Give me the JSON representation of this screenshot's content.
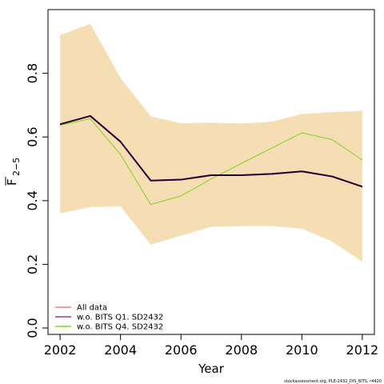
{
  "chart_data": {
    "type": "line",
    "title": "",
    "xlabel": "Year",
    "ylabel": "F",
    "ylabel_sub": "2−5",
    "x": [
      2002,
      2003,
      2004,
      2005,
      2006,
      2007,
      2008,
      2009,
      2010,
      2011,
      2012
    ],
    "xlim": [
      2001.6,
      2012.4
    ],
    "ylim": [
      -0.02,
      1.0
    ],
    "x_ticks": [
      2002,
      2004,
      2006,
      2008,
      2010,
      2012
    ],
    "x_tick_labels": [
      "2002",
      "2004",
      "2006",
      "2008",
      "2010",
      "2012"
    ],
    "y_ticks": [
      0.0,
      0.2,
      0.4,
      0.6,
      0.8
    ],
    "y_tick_labels": [
      "0.0",
      "0.2",
      "0.4",
      "0.6",
      "0.8"
    ],
    "grid": false,
    "band": {
      "upper": [
        0.92,
        0.955,
        0.785,
        0.665,
        0.643,
        0.645,
        0.642,
        0.648,
        0.672,
        0.678,
        0.682
      ],
      "lower": [
        0.36,
        0.38,
        0.382,
        0.262,
        0.29,
        0.318,
        0.32,
        0.32,
        0.312,
        0.272,
        0.208
      ],
      "color": "#f5deb3"
    },
    "series": [
      {
        "name": "All data",
        "color": "#f08080",
        "values": [
          0.64,
          0.666,
          0.585,
          0.463,
          0.466,
          0.48,
          0.48,
          0.484,
          0.492,
          0.476,
          0.444
        ]
      },
      {
        "name": "w.o. BITS Q1. SD2432",
        "color": "#9b30b8",
        "values": [
          0.64,
          0.666,
          0.585,
          0.463,
          0.466,
          0.48,
          0.48,
          0.484,
          0.492,
          0.476,
          0.444
        ]
      },
      {
        "name": "w.o. BITS Q4. SD2432",
        "color": "#7fd320",
        "values": [
          0.637,
          0.657,
          0.545,
          0.388,
          0.415,
          0.468,
          0.517,
          0.565,
          0.613,
          0.592,
          0.528
        ]
      }
    ],
    "legend_position": "bottom-left",
    "footnote": "stockassessment.org,  PLE-2432_DIS_BITS,  r4420"
  }
}
